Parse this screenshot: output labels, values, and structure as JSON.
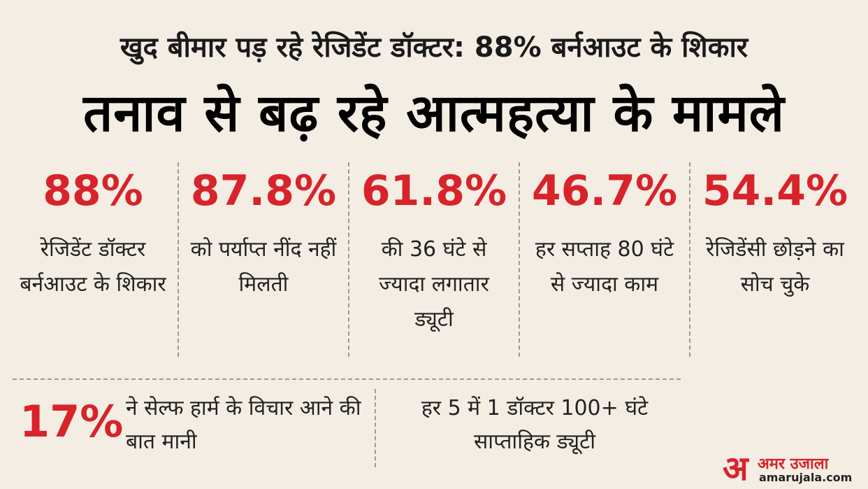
{
  "header": {
    "title": "खुद बीमार पड़ रहे रेजिडेंट डॉक्टर: 88% बर्नआउट के शिकार",
    "headline": "तनाव से बढ़ रहे आत्महत्या के मामले"
  },
  "stats": [
    {
      "value": "88%",
      "label": "रेजिडेंट डॉक्टर बर्नआउट के शिकार"
    },
    {
      "value": "87.8%",
      "label": "को पर्याप्त नींद नहीं मिलती"
    },
    {
      "value": "61.8%",
      "label": "की 36 घंटे से ज्यादा लगातार ड्यूटी"
    },
    {
      "value": "46.7%",
      "label": "हर सप्ताह 80 घंटे से ज्यादा काम"
    },
    {
      "value": "54.4%",
      "label": "रेजिडेंसी छोड़ने का सोच चुके"
    }
  ],
  "bottom": {
    "value": "17%",
    "label": "ने सेल्फ हार्म के विचार आने की बात मानी",
    "fact": "हर 5 में 1 डॉक्टर 100+ घंटे साप्ताहिक ड्यूटी"
  },
  "logo": {
    "mark": "अ",
    "name": "अमर उजाला",
    "url": "amarujala.com"
  },
  "colors": {
    "accent": "#d8232a",
    "background": "#f4ede3",
    "text": "#111111"
  }
}
